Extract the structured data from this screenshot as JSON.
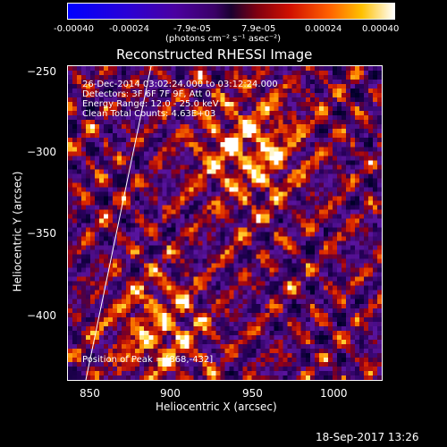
{
  "colorbar": {
    "ticks": [
      "-0.00040",
      "-0.00024",
      "-7.9e-05",
      "7.9e-05",
      "0.00024",
      "0.00040"
    ],
    "units": "(photons cm⁻² s⁻¹ asec⁻²)"
  },
  "title": "Reconstructed RHESSI Image",
  "info": {
    "time_range": "26-Dec-2014 03:02:24.000 to 03:12:24.000",
    "detectors": "Detectors: 3F 6F 7F 9F, Att 0",
    "energy": "Energy Range: 12.0 - 25.0 keV",
    "clean": "Clean     Total Counts: 4.63E+03",
    "peak": "Position of Peak = [868,-432]"
  },
  "axes": {
    "xlabel": "Heliocentric X (arcsec)",
    "ylabel": "Heliocentric Y (arcsec)",
    "xticks": [
      "850",
      "900",
      "950",
      "1000"
    ],
    "yticks": [
      "−250",
      "−300",
      "−350",
      "−400"
    ]
  },
  "footer": {
    "date": "18-Sep-2017 13:26"
  },
  "colors": {
    "background": "#000000",
    "limb": "#ffffff"
  }
}
